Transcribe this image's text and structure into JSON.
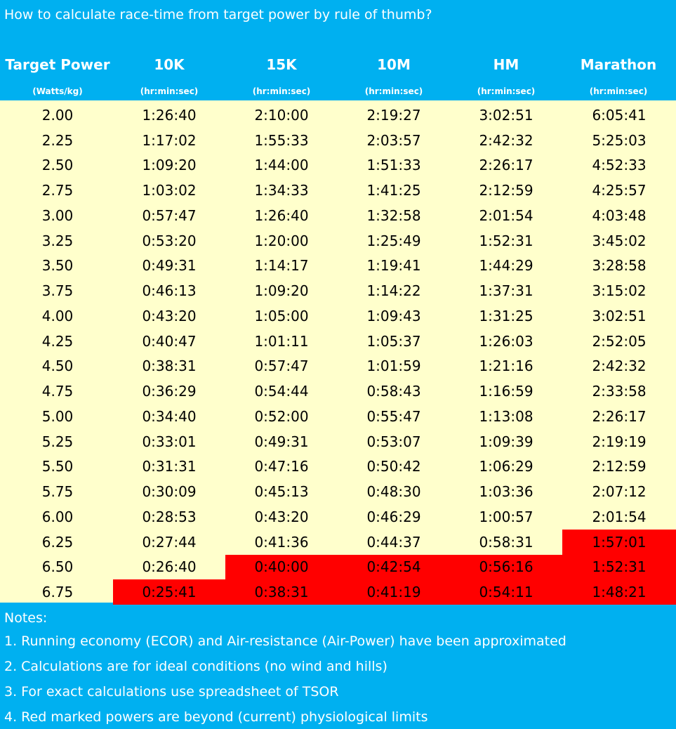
{
  "header": {
    "title": "How to calculate race-time from target power by rule of thumb?"
  },
  "table": {
    "columns": [
      "Target Power",
      "10K",
      "15K",
      "10M",
      "HM",
      "Marathon"
    ],
    "units": [
      "(Watts/kg)",
      "(hr:min:sec)",
      "(hr:min:sec)",
      "(hr:min:sec)",
      "(hr:min:sec)",
      "(hr:min:sec)"
    ],
    "rows": [
      [
        "2.00",
        "1:26:40",
        "2:10:00",
        "2:19:27",
        "3:02:51",
        "6:05:41"
      ],
      [
        "2.25",
        "1:17:02",
        "1:55:33",
        "2:03:57",
        "2:42:32",
        "5:25:03"
      ],
      [
        "2.50",
        "1:09:20",
        "1:44:00",
        "1:51:33",
        "2:26:17",
        "4:52:33"
      ],
      [
        "2.75",
        "1:03:02",
        "1:34:33",
        "1:41:25",
        "2:12:59",
        "4:25:57"
      ],
      [
        "3.00",
        "0:57:47",
        "1:26:40",
        "1:32:58",
        "2:01:54",
        "4:03:48"
      ],
      [
        "3.25",
        "0:53:20",
        "1:20:00",
        "1:25:49",
        "1:52:31",
        "3:45:02"
      ],
      [
        "3.50",
        "0:49:31",
        "1:14:17",
        "1:19:41",
        "1:44:29",
        "3:28:58"
      ],
      [
        "3.75",
        "0:46:13",
        "1:09:20",
        "1:14:22",
        "1:37:31",
        "3:15:02"
      ],
      [
        "4.00",
        "0:43:20",
        "1:05:00",
        "1:09:43",
        "1:31:25",
        "3:02:51"
      ],
      [
        "4.25",
        "0:40:47",
        "1:01:11",
        "1:05:37",
        "1:26:03",
        "2:52:05"
      ],
      [
        "4.50",
        "0:38:31",
        "0:57:47",
        "1:01:59",
        "1:21:16",
        "2:42:32"
      ],
      [
        "4.75",
        "0:36:29",
        "0:54:44",
        "0:58:43",
        "1:16:59",
        "2:33:58"
      ],
      [
        "5.00",
        "0:34:40",
        "0:52:00",
        "0:55:47",
        "1:13:08",
        "2:26:17"
      ],
      [
        "5.25",
        "0:33:01",
        "0:49:31",
        "0:53:07",
        "1:09:39",
        "2:19:19"
      ],
      [
        "5.50",
        "0:31:31",
        "0:47:16",
        "0:50:42",
        "1:06:29",
        "2:12:59"
      ],
      [
        "5.75",
        "0:30:09",
        "0:45:13",
        "0:48:30",
        "1:03:36",
        "2:07:12"
      ],
      [
        "6.00",
        "0:28:53",
        "0:43:20",
        "0:46:29",
        "1:00:57",
        "2:01:54"
      ],
      [
        "6.25",
        "0:27:44",
        "0:41:36",
        "0:44:37",
        "0:58:31",
        "1:57:01"
      ],
      [
        "6.50",
        "0:26:40",
        "0:40:00",
        "0:42:54",
        "0:56:16",
        "1:52:31"
      ],
      [
        "6.75",
        "0:25:41",
        "0:38:31",
        "0:41:19",
        "0:54:11",
        "1:48:21"
      ]
    ],
    "highlight": {
      "color": "#ff0000",
      "cells": [
        [
          17,
          5
        ],
        [
          18,
          2
        ],
        [
          18,
          3
        ],
        [
          18,
          4
        ],
        [
          18,
          5
        ],
        [
          19,
          1
        ],
        [
          19,
          2
        ],
        [
          19,
          3
        ],
        [
          19,
          4
        ],
        [
          19,
          5
        ]
      ]
    }
  },
  "notes": {
    "heading": "Notes:",
    "items": [
      "1. Running economy (ECOR) and Air-resistance (Air-Power) have been approximated",
      "2. Calculations are for ideal conditions (no wind and hills)",
      "3. For exact calculations use spreadsheet of TSOR",
      "4. Red marked powers are beyond (current) physiological limits"
    ]
  }
}
